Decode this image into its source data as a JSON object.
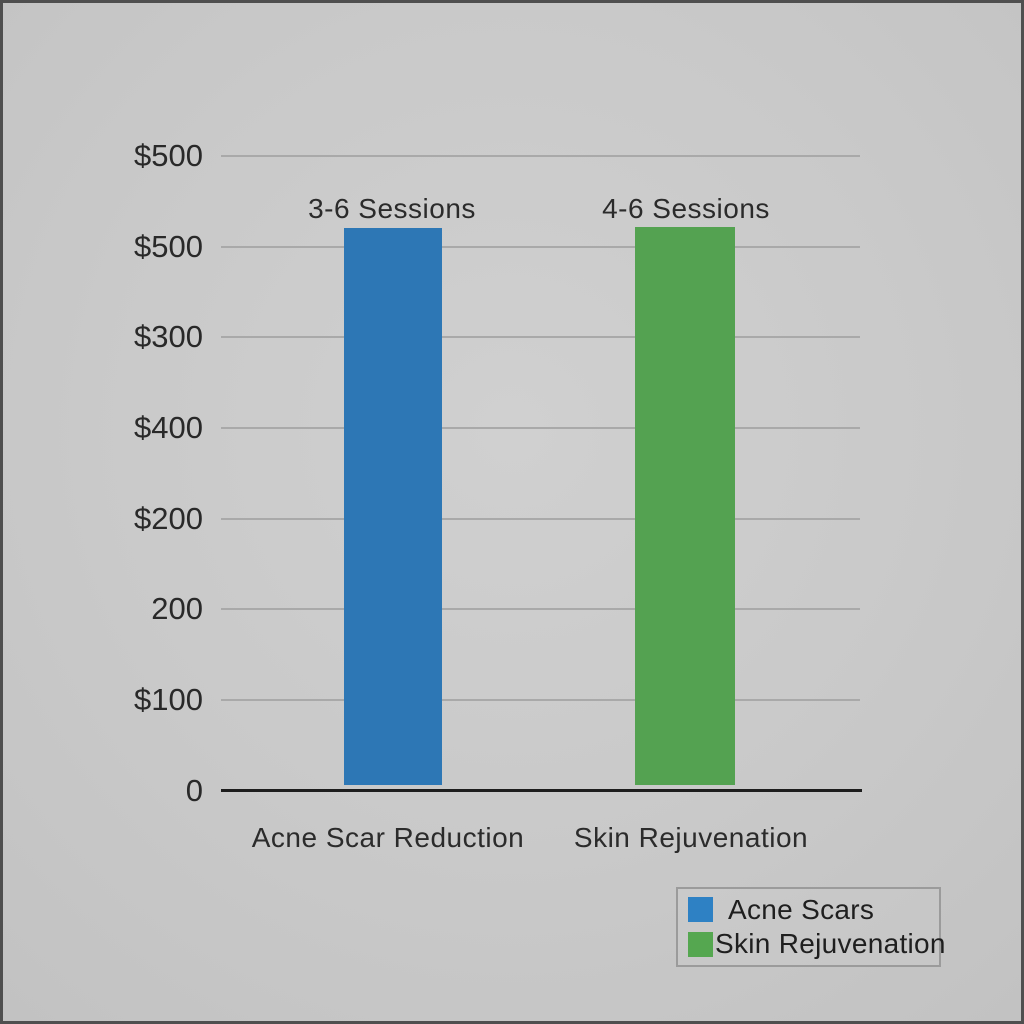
{
  "chart_data": {
    "type": "bar",
    "title": "",
    "xlabel": "",
    "ylabel": "",
    "categories": [
      "Acne Scar Reduction",
      "Skin Rejuvenation"
    ],
    "values": [
      500,
      500
    ],
    "bar_top_labels": [
      "3-6 Sessions",
      "4-6 Sessions"
    ],
    "bar_colors": [
      "#2d77b5",
      "#54a251"
    ],
    "y_tick_labels_top_to_bottom": [
      "$500",
      "$500",
      "$300",
      "$400",
      "$200",
      "200",
      "$100",
      "0"
    ],
    "ylim": [
      0,
      500
    ],
    "grid": "horizontal",
    "legend_position": "bottom-right",
    "legend": {
      "entries": [
        {
          "label": "Acne Scars",
          "color": "#2e81c4"
        },
        {
          "label": "Skin Rejuvenation",
          "color": "#55a750"
        }
      ]
    },
    "colors": {
      "background": "#c9c9c9",
      "frame_border": "#4f4f4f",
      "gridline": "#a9a9a9",
      "axis_line": "#1d1d1d",
      "text": "#2b2b2b"
    }
  }
}
